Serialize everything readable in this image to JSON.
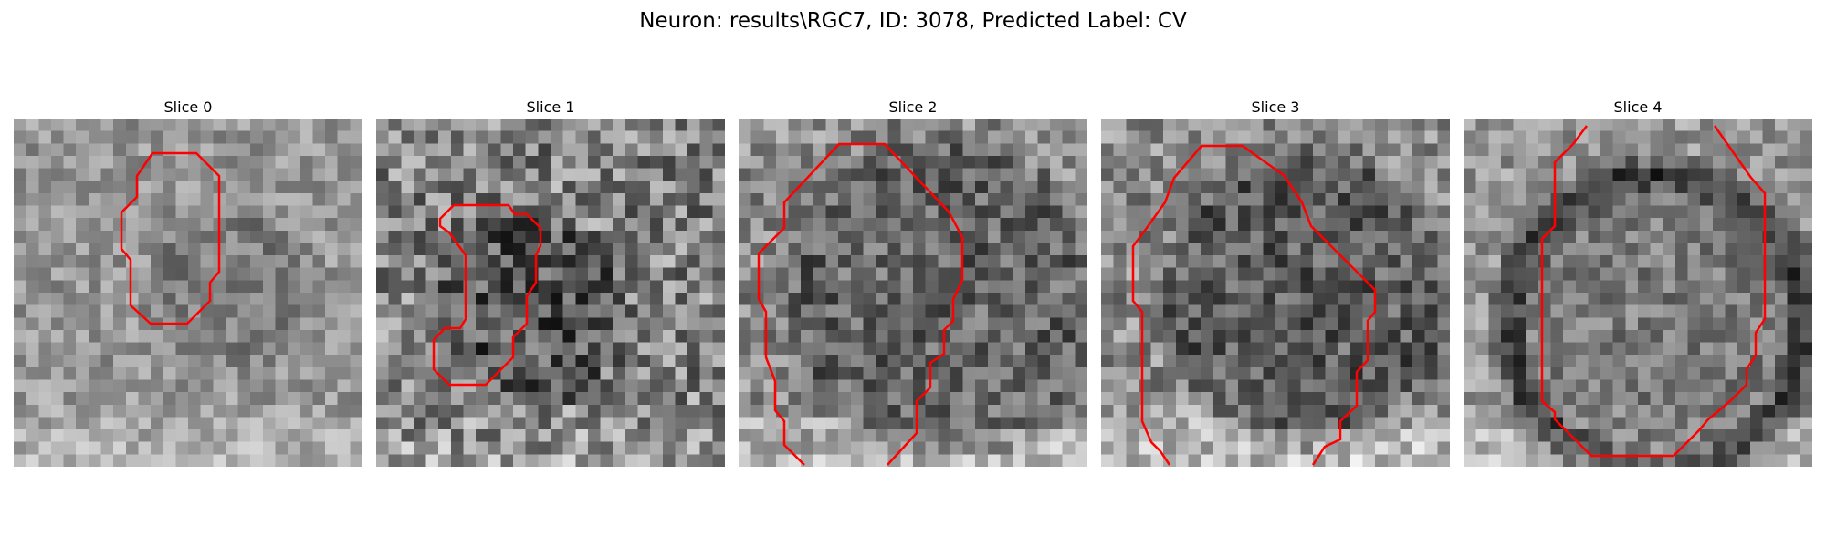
{
  "figure": {
    "title": "Neuron: results\\RGC7, ID: 3078, Predicted Label: CV"
  },
  "colors": {
    "contour": "#ff0000",
    "background": "#ffffff"
  },
  "slices": [
    {
      "label": "Slice 0"
    },
    {
      "label": "Slice 1"
    },
    {
      "label": "Slice 2"
    },
    {
      "label": "Slice 3"
    },
    {
      "label": "Slice 4"
    }
  ]
}
